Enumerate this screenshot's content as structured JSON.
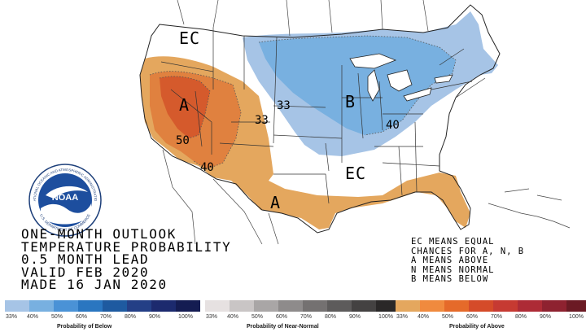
{
  "title_lines": [
    "ONE-MONTH OUTLOOK",
    "TEMPERATURE PROBABILITY",
    "0.5 MONTH LEAD",
    "VALID FEB 2020",
    "MADE 16 JAN 2020"
  ],
  "key_lines": [
    "EC MEANS EQUAL",
    "CHANCES FOR A, N, B",
    "A MEANS ABOVE",
    "N MEANS NORMAL",
    "B MEANS BELOW"
  ],
  "map_labels": {
    "ec_north": "EC",
    "ec_south": "EC",
    "a_west": "A",
    "a_south": "A",
    "b_east": "B",
    "c_33a": "33",
    "c_33b": "33",
    "c_50": "50",
    "c_40w": "40",
    "c_40e": "40"
  },
  "logo": {
    "text": "NOAA",
    "ring_top": "NATIONAL OCEANIC AND ATMOSPHERIC ADMINISTRATION",
    "ring_bottom": "U.S. DEPARTMENT OF COMMERCE"
  },
  "legends": {
    "below": {
      "title": "Probability of Below",
      "ticks": [
        "33%",
        "40%",
        "50%",
        "60%",
        "70%",
        "80%",
        "90%",
        "100%"
      ],
      "colors": [
        "#a6c4e6",
        "#78b0e0",
        "#4a92d6",
        "#2a76c0",
        "#1e5aa0",
        "#243f86",
        "#1c2a6e",
        "#141c52"
      ]
    },
    "normal": {
      "title": "Probability of Near-Normal",
      "ticks": [
        "33%",
        "40%",
        "50%",
        "60%",
        "70%",
        "80%",
        "90%",
        "100%"
      ],
      "colors": [
        "#e6e1e1",
        "#c9c5c5",
        "#a9a6a6",
        "#8e8b8b",
        "#747171",
        "#5d5b5b",
        "#444242",
        "#2a2828"
      ]
    },
    "above": {
      "title": "Probability of Above",
      "ticks": [
        "33%",
        "40%",
        "50%",
        "60%",
        "70%",
        "80%",
        "90%",
        "100%"
      ],
      "colors": [
        "#e4a75e",
        "#f08a3e",
        "#e56a2a",
        "#d54b29",
        "#c63a32",
        "#ad2b36",
        "#8e2230",
        "#6b1a24"
      ]
    }
  },
  "colors": {
    "below_33": "#a6c4e6",
    "below_40": "#78b0e0",
    "above_33": "#e4a75e",
    "above_40": "#e0813f",
    "above_50": "#d55a2c",
    "ocean": "#ffffff",
    "lines": "#222222"
  }
}
